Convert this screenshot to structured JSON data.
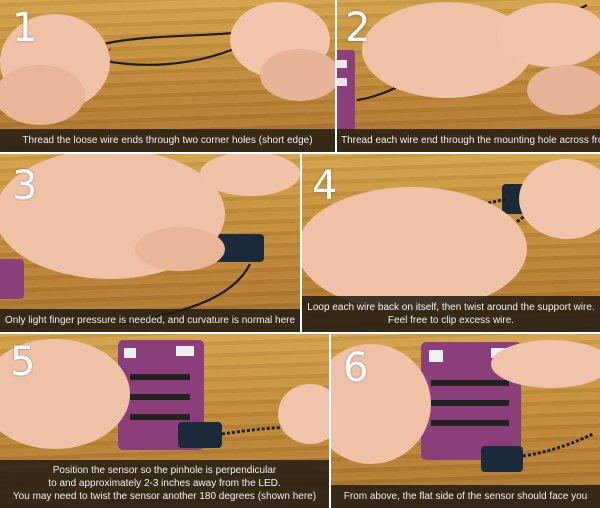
{
  "steps": [
    {
      "number": "1",
      "caption_lines": [
        "Thread the loose wire ends through two corner holes (short edge)"
      ]
    },
    {
      "number": "2",
      "caption_lines": [
        "Thread each wire end through the mounting hole across from it"
      ]
    },
    {
      "number": "3",
      "caption_lines": [
        "Only light finger pressure is needed, and curvature is normal here"
      ]
    },
    {
      "number": "4",
      "caption_lines": [
        "Loop each wire back on itself, then twist around the support wire.",
        "Feel free to clip excess wire."
      ]
    },
    {
      "number": "5",
      "caption_lines": [
        "Position the sensor so the pinhole is perpendicular",
        "to and approximately 2-3 inches away from the LED.",
        "You may need to twist the sensor another 180 degrees (shown here)"
      ]
    },
    {
      "number": "6",
      "caption_lines": [
        "From above, the flat side of the sensor should face you"
      ]
    }
  ],
  "colors": {
    "wood": "#c58f39",
    "skin": "#f0c2a8",
    "wire": "#1d1d1d",
    "board": "#8a3f7a",
    "sensor": "#1b2a38",
    "caption_bg": "#231c14"
  }
}
